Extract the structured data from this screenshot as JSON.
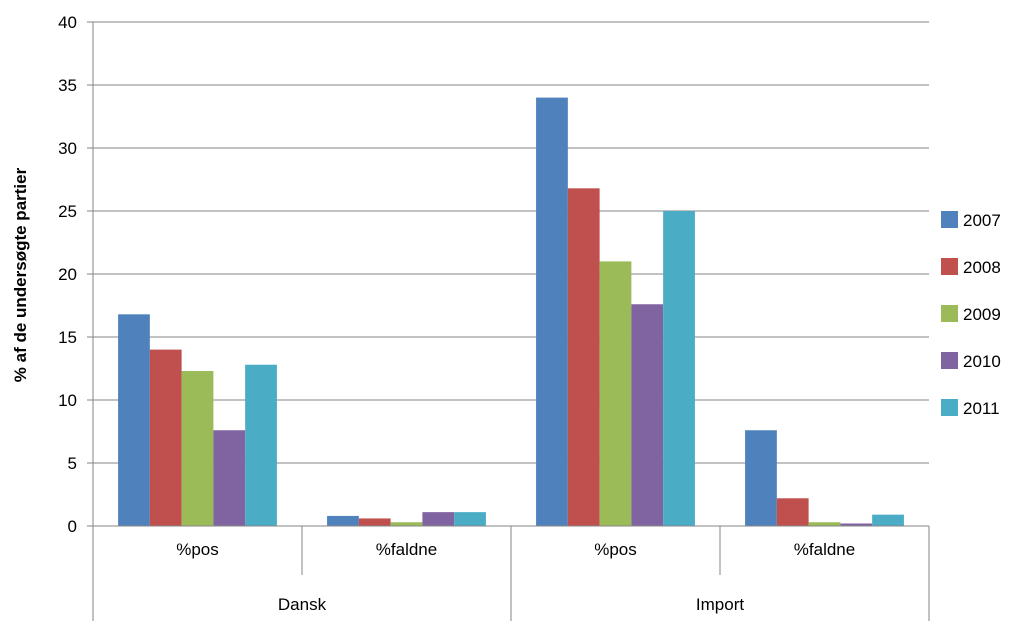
{
  "chart_data": {
    "type": "bar",
    "ylabel": "% af de undersøgte partier",
    "xlabel": "",
    "ylim": [
      0,
      40
    ],
    "ytick_step": 5,
    "yticks": [
      "0",
      "5",
      "10",
      "15",
      "20",
      "25",
      "30",
      "35",
      "40"
    ],
    "grid": true,
    "legend_position": "right",
    "groups": [
      {
        "label": "Dansk",
        "categories": [
          "%pos",
          "%faldne"
        ]
      },
      {
        "label": "Import",
        "categories": [
          "%pos",
          "%faldne"
        ]
      }
    ],
    "categories": [
      "Dansk %pos",
      "Dansk %faldne",
      "Import %pos",
      "Import %faldne"
    ],
    "series": [
      {
        "name": "2007",
        "color": "#4F81BD",
        "values": [
          16.8,
          0.8,
          34.0,
          7.6
        ]
      },
      {
        "name": "2008",
        "color": "#C0504D",
        "values": [
          14.0,
          0.6,
          26.8,
          2.2
        ]
      },
      {
        "name": "2009",
        "color": "#9BBB59",
        "values": [
          12.3,
          0.3,
          21.0,
          0.3
        ]
      },
      {
        "name": "2010",
        "color": "#8064A2",
        "values": [
          7.6,
          1.1,
          17.6,
          0.2
        ]
      },
      {
        "name": "2011",
        "color": "#4BACC6",
        "values": [
          12.8,
          1.1,
          25.0,
          0.9
        ]
      }
    ]
  }
}
